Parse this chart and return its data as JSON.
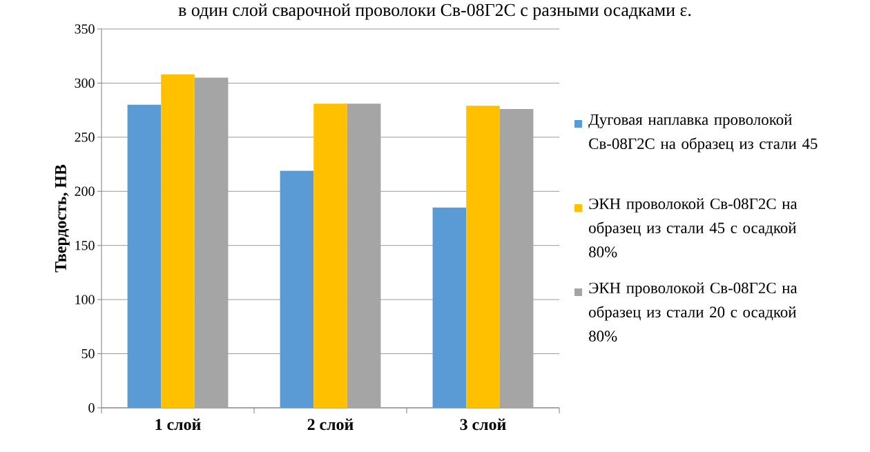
{
  "chart_data": {
    "type": "bar",
    "title": "в один слой сварочной проволоки Св-08Г2С с разными осадками ε.",
    "ylabel": "Твердость, НВ",
    "categories": [
      "1 слой",
      "2 слой",
      "3 слой"
    ],
    "series": [
      {
        "name": "Дуговая наплавка проволокой Св-08Г2С на образец из стали 45",
        "color": "#5b9bd5",
        "values": [
          280,
          219,
          185
        ]
      },
      {
        "name": "ЭКН проволокой Св-08Г2С на образец из стали 45 с осадкой 80%",
        "color": "#ffc000",
        "values": [
          308,
          281,
          279
        ]
      },
      {
        "name": "ЭКН проволокой Св-08Г2С на образец из стали 20 с осадкой 80%",
        "color": "#a5a5a5",
        "values": [
          305,
          281,
          276
        ]
      }
    ],
    "ylim": [
      0,
      350
    ],
    "yticks": [
      0,
      50,
      100,
      150,
      200,
      250,
      300,
      350
    ],
    "grid": "y",
    "legend": "right"
  }
}
